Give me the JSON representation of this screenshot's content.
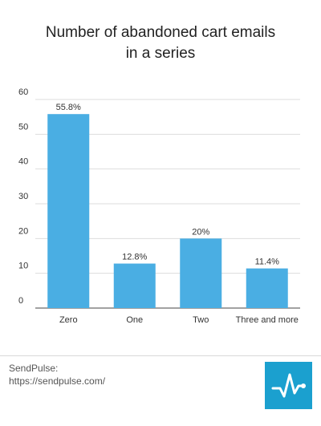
{
  "title": {
    "line1": "Number of abandoned cart emails",
    "line2": "in a series"
  },
  "colors": {
    "bar": "#4aaee3",
    "grid": "#dddddd",
    "axis": "#444444",
    "text": "#333333",
    "brand": "#1ba0cf"
  },
  "footer": {
    "brand": "SendPulse:",
    "url": "https://sendpulse.com/",
    "logo_icon": "pulse-logo-icon"
  },
  "chart_data": {
    "type": "bar",
    "categories": [
      "Zero",
      "One",
      "Two",
      "Three and more"
    ],
    "values": [
      55.8,
      12.8,
      20,
      11.4
    ],
    "data_labels": [
      "55.8%",
      "12.8%",
      "20%",
      "11.4%"
    ],
    "yticks": [
      0,
      10,
      20,
      30,
      40,
      50,
      60
    ],
    "ylim": [
      0,
      60
    ],
    "grid": true,
    "legend": "none"
  }
}
